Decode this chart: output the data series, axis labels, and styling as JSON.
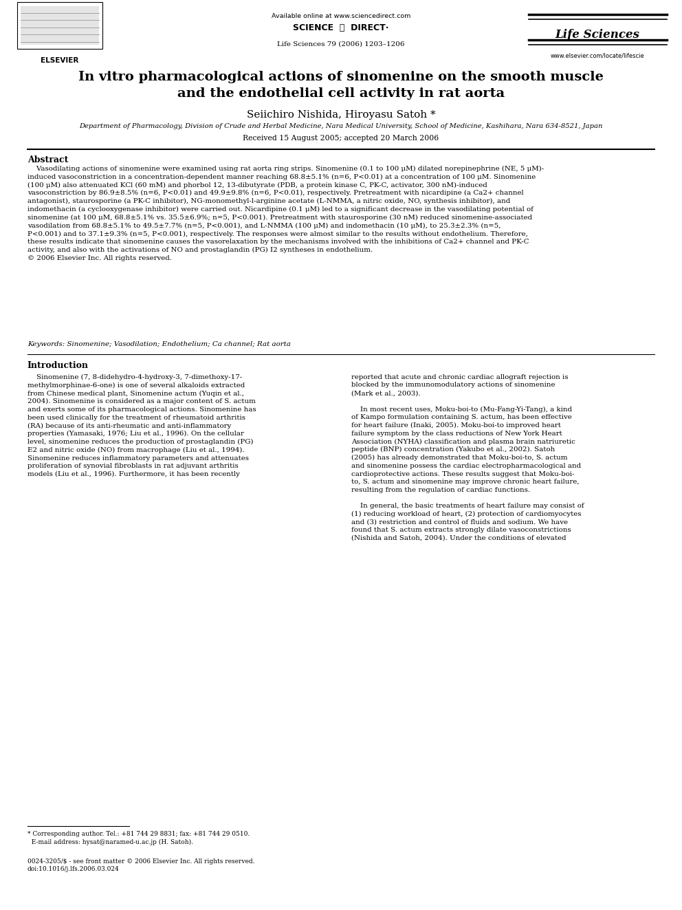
{
  "bg_color": "#ffffff",
  "page_width": 9.92,
  "page_height": 13.23,
  "header": {
    "available_online": "Available online at www.sciencedirect.com",
    "journal_name": "Life Sciences",
    "journal_info": "Life Sciences 79 (2006) 1203–1206",
    "journal_url": "www.elsevier.com/locate/lifescie",
    "elsevier_text": "ELSEVIER",
    "sciencedirect_text": "SCIENCE    DIRECT·"
  },
  "title": "In vitro pharmacological actions of sinomenine on the smooth muscle\nand the endothelial cell activity in rat aorta",
  "authors": "Seiichiro Nishida, Hiroyasu Satoh *",
  "affiliation": "Department of Pharmacology, Division of Crude and Herbal Medicine, Nara Medical University, School of Medicine, Kashihara, Nara 634-8521, Japan",
  "received": "Received 15 August 2005; accepted 20 March 2006",
  "abstract_title": "Abstract",
  "abstract_text": "    Vasodilating actions of sinomenine were examined using rat aorta ring strips. Sinomenine (0.1 to 100 μM) dilated norepinephrine (NE, 5 μM)-induced vasoconstriction in a concentration-dependent manner reaching 68.8±5.1% (n=6, P<0.01) at a concentration of 100 μM. Sinomenine (100 μM) also attenuated KCl (60 mM) and phorbol 12, 13-dibutyrate (PDB, a protein kinase C, PK-C, activator, 300 nM)-induced vasoconstriction by 86.9±8.5% (n=6, P<0.01) and 49.9±9.8% (n=6, P<0.01), respectively. Pretreatment with nicardipine (a Ca2+ channel antagonist), staurosporine (a PK-C inhibitor), NG-monomethyl-l-arginine acetate (L-NMMA, a nitric oxide, NO, synthesis inhibitor), and indomethacin (a cyclooxygenase inhibitor) were carried out. Nicardipine (0.1 μM) led to a significant decrease in the vasodilating potential of sinomenine (at 100 μM, 68.8±5.1% vs. 35.5±6.9%; n=5, P<0.001). Pretreatment with staurosporine (30 nM) reduced sinomenine-associated vasodilation from 68.8±5.1% to 49.5±7.7% (n=5, P<0.001), and L-NMMA (100 μM) and indomethacin (10 μM), to 25.3±2.3% (n=5, P<0.001) and to 37.1±9.3% (n=5, P<0.001), respectively. The responses were almost similar to the results without endothelium. Therefore, these results indicate that sinomenine causes the vasorelaxation by the mechanisms involved with the inhibitions of Ca2+ channel and PK-C activity, and also with the activations of NO and prostaglandin (PG) I2 syntheses in endothelium.\n© 2006 Elsevier Inc. All rights reserved.",
  "keywords": "Keywords: Sinomenine; Vasodilation; Endothelium; Ca channel; Rat aorta",
  "intro_title": "Introduction",
  "intro_left": "    Sinomenine (7, 8-didehydro-4-hydroxy-3, 7-dimethoxy-17-\nmethylmorphinae-6-one) is one of several alkaloids extracted\nfrom Chinese medical plant, Sinomenine actum (Yuqin et al.,\n2004). Sinomenine is considered as a major content of S. actum\nand exerts some of its pharmacological actions. Sinomenine has\nbeen used clinically for the treatment of rheumatoid arthritis\n(RA) because of its anti-rheumatic and anti-inflammatory\nproperties (Yamasaki, 1976; Liu et al., 1996). On the cellular\nlevel, sinomenine reduces the production of prostaglandin (PG)\nE2 and nitric oxide (NO) from macrophage (Liu et al., 1994).\nSinomenine reduces inflammatory parameters and attenuates\nproliferation of synovial fibroblasts in rat adjuvant arthritis\nmodels (Liu et al., 1996). Furthermore, it has been recently",
  "intro_right": "reported that acute and chronic cardiac allograft rejection is\nblocked by the immunomodulatory actions of sinomenine\n(Mark et al., 2003).\n\n    In most recent uses, Moku-boi-to (Mu-Fang-Yi-Tang), a kind\nof Kampo formulation containing S. actum, has been effective\nfor heart failure (Inaki, 2005). Moku-boi-to improved heart\nfailure symptom by the class reductions of New York Heart\nAssociation (NYHA) classification and plasma brain natriuretic\npeptide (BNP) concentration (Yakubo et al., 2002). Satoh\n(2005) has already demonstrated that Moku-boi-to, S. actum\nand sinomenine possess the cardiac electropharmacological and\ncardioprotective actions. These results suggest that Moku-boi-\nto, S. actum and sinomenine may improve chronic heart failure,\nresulting from the regulation of cardiac functions.\n\n    In general, the basic treatments of heart failure may consist of\n(1) reducing workload of heart, (2) protection of cardiomyocytes\nand (3) restriction and control of fluids and sodium. We have\nfound that S. actum extracts strongly dilate vasoconstrictions\n(Nishida and Satoh, 2004). Under the conditions of elevated",
  "footnote_line1": "* Corresponding author. Tel.: +81 744 29 8831; fax: +81 744 29 0510.",
  "footnote_line2": "  E-mail address: hysat@naramed-u.ac.jp (H. Satoh).",
  "copyright_footer": "0024-3205/$ - see front matter © 2006 Elsevier Inc. All rights reserved.",
  "doi_footer": "doi:10.1016/j.lfs.2006.03.024"
}
